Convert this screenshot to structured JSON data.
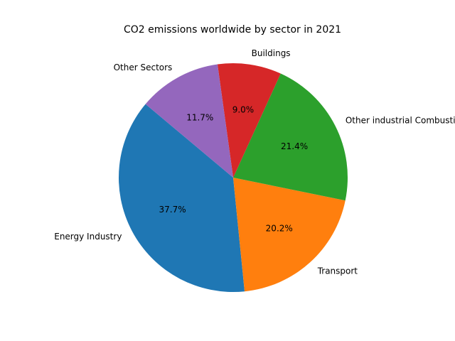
{
  "chart_data": {
    "type": "pie",
    "title": "CO2 emissions worldwide by sector in 2021",
    "slices": [
      {
        "label": "Energy Industry",
        "value": 37.7,
        "value_label": "37.7%",
        "color": "#1f77b4"
      },
      {
        "label": "Transport",
        "value": 20.2,
        "value_label": "20.2%",
        "color": "#ff7f0e"
      },
      {
        "label": "Other industrial Combustion",
        "value": 21.4,
        "value_label": "21.4%",
        "color": "#2ca02c"
      },
      {
        "label": "Buildings",
        "value": 9.0,
        "value_label": "9.0%",
        "color": "#d62728"
      },
      {
        "label": "Other Sectors",
        "value": 11.7,
        "value_label": "11.7%",
        "color": "#9467bd"
      }
    ]
  }
}
